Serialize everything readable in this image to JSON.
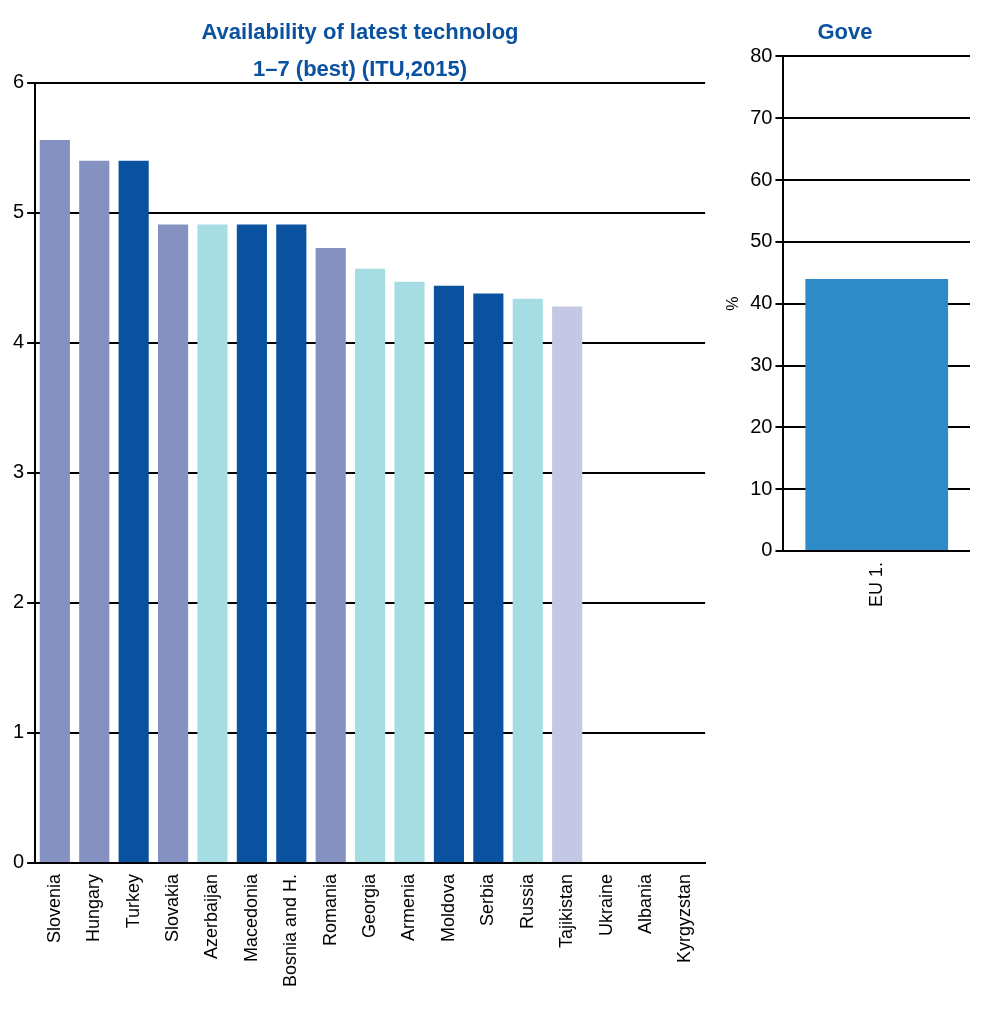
{
  "chart_data": [
    {
      "type": "bar",
      "title": "Availability of latest technolog",
      "subtitle": "1–7 (best) (ITU,2015)",
      "categories": [
        "Slovenia",
        "Hungary",
        "Turkey",
        "Slovakia",
        "Azerbaijan",
        "Macedonia",
        "Bosnia and H.",
        "Romania",
        "Georgia",
        "Armenia",
        "Moldova",
        "Serbia",
        "Russia",
        "Tajikistan",
        "Ukraine",
        "Albania",
        "Kyrgyzstan"
      ],
      "values": [
        5.56,
        5.4,
        5.4,
        4.91,
        4.91,
        4.91,
        4.91,
        4.73,
        4.57,
        4.47,
        4.44,
        4.38,
        4.34,
        4.28,
        null,
        null,
        null
      ],
      "colors": [
        "#8591c1",
        "#8591c1",
        "#0a52a0",
        "#8591c1",
        "#a6dde3",
        "#0a52a0",
        "#0a52a0",
        "#8591c1",
        "#a6dde3",
        "#a6dde3",
        "#0a52a0",
        "#0a52a0",
        "#a6dde3",
        "#c5c8e4",
        "#c5c8e4",
        "#c5c8e4",
        "#c5c8e4"
      ],
      "ylim": [
        0,
        6
      ],
      "yticks": [
        0,
        1,
        2,
        3,
        4,
        5,
        6
      ],
      "grid": "y"
    },
    {
      "type": "bar",
      "title": "Gove",
      "ylabel": "%",
      "categories": [
        "EU 1."
      ],
      "values": [
        44
      ],
      "colors": [
        "#2e8bc8"
      ],
      "ylim": [
        0,
        80
      ],
      "yticks": [
        0,
        10,
        20,
        30,
        40,
        50,
        60,
        70,
        80
      ],
      "grid": "y"
    }
  ]
}
